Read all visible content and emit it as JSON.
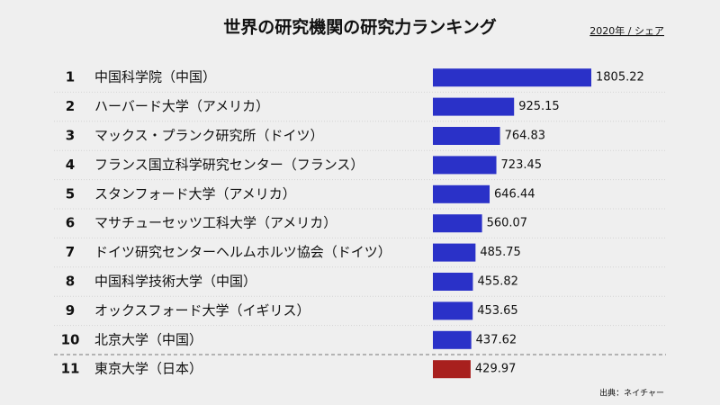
{
  "chart_data": {
    "type": "bar",
    "orientation": "horizontal",
    "title": "世界の研究機関の研究力ランキング",
    "subtitle": "2020年 / シェア",
    "source": "出典：ネイチャー",
    "ranks": [
      1,
      2,
      3,
      4,
      5,
      6,
      7,
      8,
      9,
      10,
      11
    ],
    "categories": [
      "中国科学院（中国）",
      "ハーバード大学（アメリカ）",
      "マックス・プランク研究所（ドイツ）",
      "フランス国立科学研究センター（フランス）",
      "スタンフォード大学（アメリカ）",
      "マサチューセッツ工科大学（アメリカ）",
      "ドイツ研究センターヘルムホルツ協会（ドイツ）",
      "中国科学技術大学（中国）",
      "オックスフォード大学（イギリス）",
      "北京大学（中国）",
      "東京大学（日本）"
    ],
    "values": [
      1805.22,
      925.15,
      764.83,
      723.45,
      646.44,
      560.07,
      485.75,
      455.82,
      453.65,
      437.62,
      429.97
    ],
    "colors": [
      "#2a31c8",
      "#2a31c8",
      "#2a31c8",
      "#2a31c8",
      "#2a31c8",
      "#2a31c8",
      "#2a31c8",
      "#2a31c8",
      "#2a31c8",
      "#2a31c8",
      "#a8201e"
    ]
  }
}
